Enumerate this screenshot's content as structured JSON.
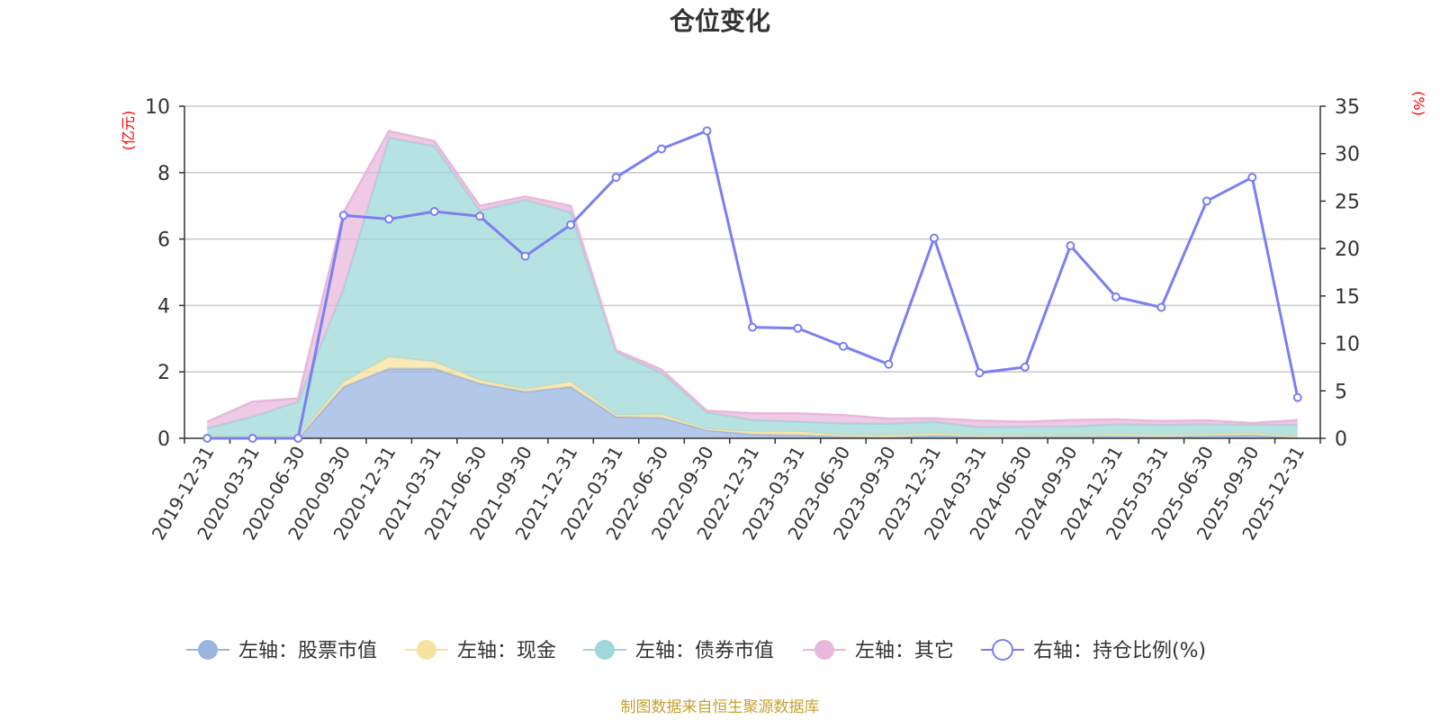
{
  "chart_data": {
    "type": "area",
    "title": "仓位变化",
    "left_axis_unit": "(亿元)",
    "right_axis_unit": "(%)",
    "left_ylim": [
      0,
      10
    ],
    "right_ylim": [
      0,
      35
    ],
    "left_ticks": [
      "0",
      "2",
      "4",
      "6",
      "8",
      "10"
    ],
    "right_ticks": [
      "0",
      "5",
      "10",
      "15",
      "20",
      "25",
      "30",
      "35"
    ],
    "grid": true,
    "legend_position": "bottom",
    "categories": [
      "2019-12-31",
      "2020-03-31",
      "2020-06-30",
      "2020-09-30",
      "2020-12-31",
      "2021-03-31",
      "2021-06-30",
      "2021-09-30",
      "2021-12-31",
      "2022-03-31",
      "2022-06-30",
      "2022-09-30",
      "2022-12-31",
      "2023-03-31",
      "2023-06-30",
      "2023-09-30",
      "2023-12-31",
      "2024-03-31",
      "2024-06-30",
      "2024-09-30",
      "2024-12-31",
      "2025-03-31",
      "2025-06-30",
      "2025-09-30",
      "2025-12-31"
    ],
    "series": [
      {
        "name": "左轴：股票市值",
        "axis": "left",
        "kind": "stacked-area",
        "color": "#9ab4e0",
        "values": [
          0,
          0,
          0,
          1.55,
          2.1,
          2.1,
          1.65,
          1.4,
          1.55,
          0.65,
          0.62,
          0.25,
          0.12,
          0.1,
          0.05,
          0.03,
          0.08,
          0.05,
          0.06,
          0.06,
          0.06,
          0.05,
          0.07,
          0.1,
          0.02
        ]
      },
      {
        "name": "左轴：现金",
        "axis": "left",
        "kind": "stacked-area",
        "color": "#f7e3a0",
        "values": [
          0.05,
          0.05,
          0.05,
          0.15,
          0.35,
          0.2,
          0.1,
          0.08,
          0.15,
          0.05,
          0.1,
          0.03,
          0.08,
          0.1,
          0.05,
          0.06,
          0.07,
          0.03,
          0.04,
          0.04,
          0.06,
          0.05,
          0.05,
          0.06,
          0.03
        ]
      },
      {
        "name": "左轴：债券市值",
        "axis": "left",
        "kind": "stacked-area",
        "color": "#9fd8d8",
        "values": [
          0.25,
          0.6,
          1.05,
          2.8,
          6.6,
          6.5,
          5.1,
          5.7,
          5.1,
          1.9,
          1.25,
          0.5,
          0.35,
          0.3,
          0.35,
          0.35,
          0.35,
          0.25,
          0.25,
          0.25,
          0.3,
          0.3,
          0.3,
          0.25,
          0.35
        ]
      },
      {
        "name": "左轴：其它",
        "axis": "left",
        "kind": "stacked-area",
        "color": "#e8b8dc",
        "values": [
          0.2,
          0.45,
          0.1,
          2.3,
          0.2,
          0.15,
          0.15,
          0.1,
          0.2,
          0.05,
          0.1,
          0.05,
          0.2,
          0.25,
          0.25,
          0.15,
          0.1,
          0.2,
          0.15,
          0.2,
          0.15,
          0.12,
          0.12,
          0.05,
          0.15
        ]
      },
      {
        "name": "右轴：持仓比例(%)",
        "axis": "right",
        "kind": "line",
        "color": "#7b7ff0",
        "values": [
          0,
          0,
          0,
          23.5,
          23.1,
          23.9,
          23.4,
          19.2,
          22.5,
          27.5,
          30.5,
          32.4,
          11.7,
          11.6,
          9.7,
          7.8,
          21.1,
          6.9,
          7.5,
          20.3,
          14.9,
          13.8,
          25,
          27.5,
          4.3
        ]
      }
    ],
    "source_note": "制图数据来自恒生聚源数据库"
  }
}
